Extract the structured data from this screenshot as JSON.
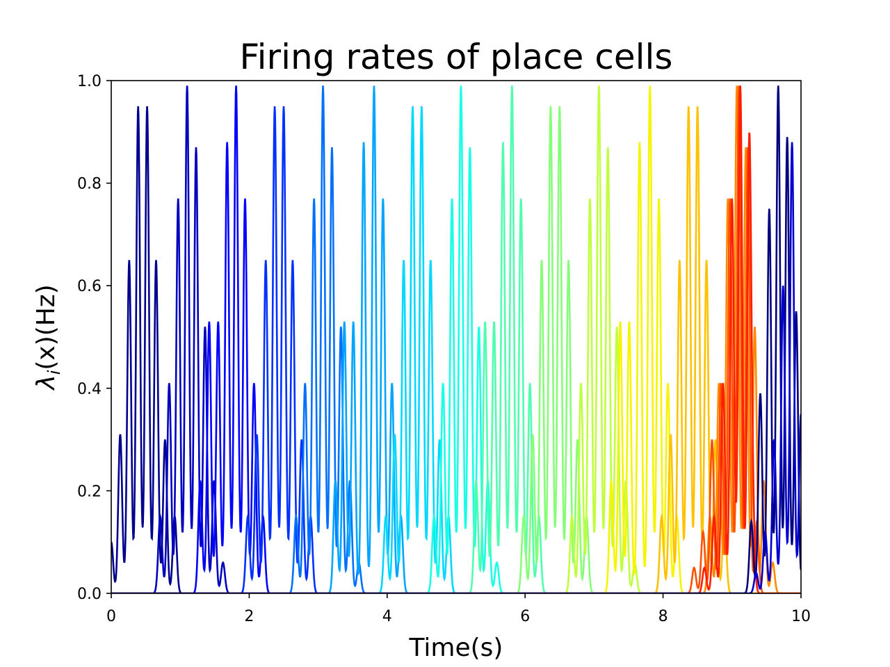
{
  "chart_data": {
    "type": "line",
    "title": "Firing rates of place cells",
    "xlabel": "Time(s)",
    "ylabel": {
      "lambda": "λ",
      "subscript": "i",
      "rest": "(x)(Hz)"
    },
    "xlim": [
      0,
      10
    ],
    "ylim": [
      0,
      1
    ],
    "xticks": [
      "0",
      "2",
      "4",
      "6",
      "8",
      "10"
    ],
    "yticks": [
      "0.0",
      "0.2",
      "0.4",
      "0.6",
      "0.8",
      "1.0"
    ],
    "grid": false,
    "legend": "none",
    "colormap": "jet",
    "series": [
      {
        "color": "#00008f",
        "peaks": [
          [
            0.0,
            0.1
          ],
          [
            0.13,
            0.31
          ],
          [
            0.26,
            0.65
          ],
          [
            0.39,
            0.95
          ],
          [
            0.52,
            0.95
          ],
          [
            0.65,
            0.65
          ],
          [
            0.78,
            0.3
          ],
          [
            0.92,
            0.15
          ]
        ]
      },
      {
        "color": "#0000bf",
        "peaks": [
          [
            0.71,
            0.15
          ],
          [
            0.84,
            0.41
          ],
          [
            0.97,
            0.77
          ],
          [
            1.1,
            0.99
          ],
          [
            1.23,
            0.87
          ],
          [
            1.36,
            0.52
          ],
          [
            1.49,
            0.22
          ],
          [
            1.62,
            0.06
          ]
        ]
      },
      {
        "color": "#0000ff",
        "peaks": [
          [
            1.29,
            0.22
          ],
          [
            1.42,
            0.53
          ],
          [
            1.55,
            0.53
          ],
          [
            1.68,
            0.88
          ],
          [
            1.81,
            0.99
          ],
          [
            1.94,
            0.77
          ],
          [
            2.07,
            0.41
          ],
          [
            2.2,
            0.15
          ]
        ]
      },
      {
        "color": "#0030ff",
        "peaks": [
          [
            1.98,
            0.15
          ],
          [
            2.11,
            0.31
          ],
          [
            2.24,
            0.65
          ],
          [
            2.37,
            0.95
          ],
          [
            2.5,
            0.95
          ],
          [
            2.63,
            0.65
          ],
          [
            2.76,
            0.3
          ],
          [
            2.89,
            0.15
          ]
        ]
      },
      {
        "color": "#0070ff",
        "peaks": [
          [
            2.68,
            0.15
          ],
          [
            2.81,
            0.41
          ],
          [
            2.94,
            0.77
          ],
          [
            3.07,
            0.99
          ],
          [
            3.2,
            0.87
          ],
          [
            3.33,
            0.52
          ],
          [
            3.46,
            0.22
          ],
          [
            3.59,
            0.06
          ]
        ]
      },
      {
        "color": "#00a5ff",
        "peaks": [
          [
            3.25,
            0.22
          ],
          [
            3.38,
            0.53
          ],
          [
            3.51,
            0.53
          ],
          [
            3.66,
            0.88
          ],
          [
            3.81,
            0.99
          ],
          [
            3.94,
            0.77
          ],
          [
            4.07,
            0.41
          ],
          [
            4.2,
            0.15
          ]
        ]
      },
      {
        "color": "#00d8ff",
        "peaks": [
          [
            3.98,
            0.15
          ],
          [
            4.11,
            0.31
          ],
          [
            4.24,
            0.65
          ],
          [
            4.37,
            0.95
          ],
          [
            4.5,
            0.95
          ],
          [
            4.63,
            0.65
          ],
          [
            4.76,
            0.3
          ],
          [
            4.89,
            0.15
          ]
        ]
      },
      {
        "color": "#19ffe6",
        "peaks": [
          [
            4.68,
            0.15
          ],
          [
            4.81,
            0.41
          ],
          [
            4.94,
            0.77
          ],
          [
            5.07,
            0.99
          ],
          [
            5.2,
            0.87
          ],
          [
            5.33,
            0.52
          ],
          [
            5.46,
            0.22
          ],
          [
            5.59,
            0.06
          ]
        ]
      },
      {
        "color": "#4fffaf",
        "peaks": [
          [
            5.29,
            0.22
          ],
          [
            5.42,
            0.53
          ],
          [
            5.55,
            0.53
          ],
          [
            5.68,
            0.88
          ],
          [
            5.81,
            0.99
          ],
          [
            5.94,
            0.77
          ],
          [
            6.07,
            0.41
          ],
          [
            6.2,
            0.15
          ]
        ]
      },
      {
        "color": "#86ff78",
        "peaks": [
          [
            5.98,
            0.15
          ],
          [
            6.11,
            0.31
          ],
          [
            6.24,
            0.65
          ],
          [
            6.37,
            0.95
          ],
          [
            6.5,
            0.95
          ],
          [
            6.63,
            0.65
          ],
          [
            6.76,
            0.3
          ],
          [
            6.89,
            0.15
          ]
        ]
      },
      {
        "color": "#c0ff3e",
        "peaks": [
          [
            6.68,
            0.15
          ],
          [
            6.81,
            0.41
          ],
          [
            6.94,
            0.77
          ],
          [
            7.07,
            0.99
          ],
          [
            7.2,
            0.87
          ],
          [
            7.33,
            0.52
          ],
          [
            7.46,
            0.22
          ],
          [
            7.59,
            0.06
          ]
        ]
      },
      {
        "color": "#f5f500",
        "peaks": [
          [
            7.25,
            0.22
          ],
          [
            7.38,
            0.53
          ],
          [
            7.51,
            0.53
          ],
          [
            7.66,
            0.88
          ],
          [
            7.81,
            0.99
          ],
          [
            7.94,
            0.77
          ],
          [
            8.07,
            0.41
          ],
          [
            8.2,
            0.15
          ]
        ]
      },
      {
        "color": "#ffc100",
        "peaks": [
          [
            7.98,
            0.15
          ],
          [
            8.11,
            0.31
          ],
          [
            8.24,
            0.65
          ],
          [
            8.37,
            0.95
          ],
          [
            8.5,
            0.95
          ],
          [
            8.63,
            0.65
          ],
          [
            8.76,
            0.3
          ],
          [
            8.89,
            0.15
          ]
        ]
      },
      {
        "color": "#ff8a00",
        "peaks": [
          [
            8.68,
            0.15
          ],
          [
            8.81,
            0.41
          ],
          [
            8.94,
            0.77
          ],
          [
            9.07,
            0.99
          ],
          [
            9.2,
            0.87
          ],
          [
            9.33,
            0.52
          ],
          [
            9.46,
            0.22
          ],
          [
            9.59,
            0.06
          ]
        ]
      },
      {
        "color": "#ff5000",
        "peaks": [
          [
            8.45,
            0.05
          ],
          [
            8.58,
            0.12
          ],
          [
            8.71,
            0.3
          ],
          [
            8.84,
            0.41
          ],
          [
            8.97,
            0.77
          ],
          [
            9.1,
            0.99
          ],
          [
            9.23,
            0.87
          ],
          [
            9.36,
            0.14
          ]
        ]
      },
      {
        "color": "#ff1e00",
        "peaks": [
          [
            8.6,
            0.05
          ],
          [
            8.74,
            0.15
          ],
          [
            8.87,
            0.41
          ],
          [
            9.0,
            0.77
          ],
          [
            9.12,
            0.99
          ],
          [
            9.25,
            0.87
          ],
          [
            9.3,
            0.14
          ]
        ]
      },
      {
        "color": "#00007f",
        "peaks": [
          [
            9.28,
            0.14
          ],
          [
            9.41,
            0.39
          ],
          [
            9.54,
            0.75
          ],
          [
            9.67,
            0.99
          ],
          [
            9.8,
            0.89
          ],
          [
            9.93,
            0.55
          ],
          [
            10.06,
            0.21
          ]
        ]
      },
      {
        "color": "#0000d0",
        "peaks": [
          [
            9.35,
            0.04
          ],
          [
            9.48,
            0.12
          ],
          [
            9.61,
            0.3
          ],
          [
            9.74,
            0.6
          ],
          [
            9.87,
            0.88
          ],
          [
            10.0,
            0.35
          ]
        ]
      }
    ]
  }
}
